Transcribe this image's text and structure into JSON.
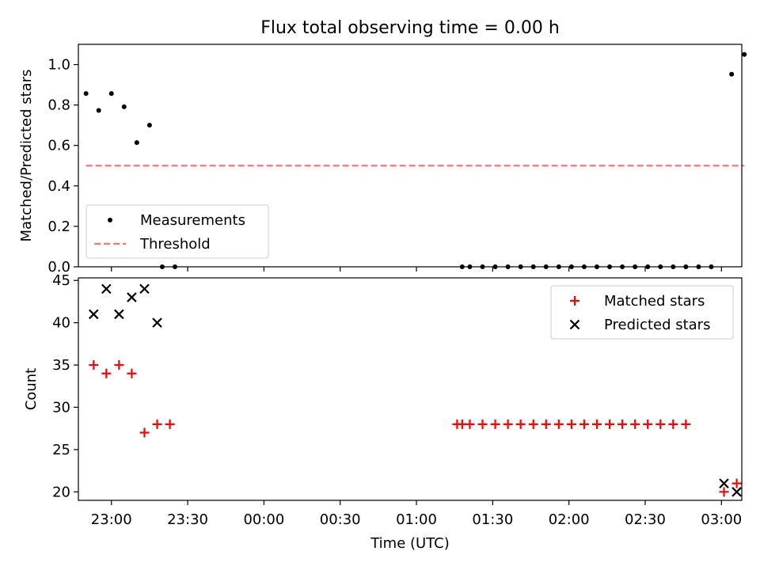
{
  "title": "Flux total observing time = 0.00 h",
  "colors": {
    "measurement": "#000000",
    "threshold": "#ff0000",
    "matched": "#ff0000",
    "predicted": "#000000"
  },
  "chart_data": [
    {
      "type": "scatter",
      "ylabel": "Matched/Predicted stars",
      "xlim": [
        "22:47",
        "03:08"
      ],
      "ylim": [
        0,
        1.1
      ],
      "yticks": [
        "0.0",
        "0.2",
        "0.4",
        "0.6",
        "0.8",
        "1.0"
      ],
      "legend_position": "lower-left",
      "series": [
        {
          "name": "Measurements",
          "marker": "dot",
          "x": [
            "22:50",
            "22:55",
            "23:00",
            "23:05",
            "23:10",
            "23:15",
            "23:20",
            "23:25",
            "01:18",
            "01:21",
            "01:26",
            "01:31",
            "01:36",
            "01:41",
            "01:46",
            "01:51",
            "01:56",
            "02:01",
            "02:06",
            "02:11",
            "02:16",
            "02:21",
            "02:26",
            "02:31",
            "02:36",
            "02:41",
            "02:46",
            "02:51",
            "02:56",
            "03:04",
            "03:09"
          ],
          "y": [
            0.857,
            0.773,
            0.857,
            0.791,
            0.614,
            0.7,
            0.0,
            0.0,
            0.0,
            0.0,
            0.0,
            0.0,
            0.0,
            0.0,
            0.0,
            0.0,
            0.0,
            0.0,
            0.0,
            0.0,
            0.0,
            0.0,
            0.0,
            0.0,
            0.0,
            0.0,
            0.0,
            0.0,
            0.0,
            0.952,
            1.05
          ]
        },
        {
          "name": "Threshold",
          "style": "dashed",
          "x": [
            "22:50",
            "03:09"
          ],
          "y": [
            0.5,
            0.5
          ]
        }
      ]
    },
    {
      "type": "scatter",
      "ylabel": "Count",
      "xlabel": "Time (UTC)",
      "xlim": [
        "22:47",
        "03:08"
      ],
      "ylim": [
        19,
        45.3
      ],
      "yticks": [
        "20",
        "25",
        "30",
        "35",
        "40",
        "45"
      ],
      "xticks": [
        "23:00",
        "23:30",
        "00:00",
        "00:30",
        "01:00",
        "01:30",
        "02:00",
        "02:30",
        "03:00"
      ],
      "legend_position": "upper-right",
      "series": [
        {
          "name": "Matched stars",
          "marker": "plus",
          "x": [
            "22:53",
            "22:58",
            "23:03",
            "23:08",
            "23:13",
            "23:18",
            "23:23",
            "01:16",
            "01:18",
            "01:21",
            "01:26",
            "01:31",
            "01:36",
            "01:41",
            "01:46",
            "01:51",
            "01:56",
            "02:01",
            "02:06",
            "02:11",
            "02:16",
            "02:21",
            "02:26",
            "02:31",
            "02:36",
            "02:41",
            "02:46",
            "03:01",
            "03:06"
          ],
          "y": [
            35,
            34,
            35,
            34,
            27,
            28,
            28,
            28,
            28,
            28,
            28,
            28,
            28,
            28,
            28,
            28,
            28,
            28,
            28,
            28,
            28,
            28,
            28,
            28,
            28,
            28,
            28,
            20,
            21
          ]
        },
        {
          "name": "Predicted stars",
          "marker": "x",
          "x": [
            "22:53",
            "22:58",
            "23:03",
            "23:08",
            "23:13",
            "23:18",
            "03:01",
            "03:06"
          ],
          "y": [
            41,
            44,
            41,
            43,
            44,
            40,
            21,
            20
          ]
        }
      ]
    }
  ]
}
